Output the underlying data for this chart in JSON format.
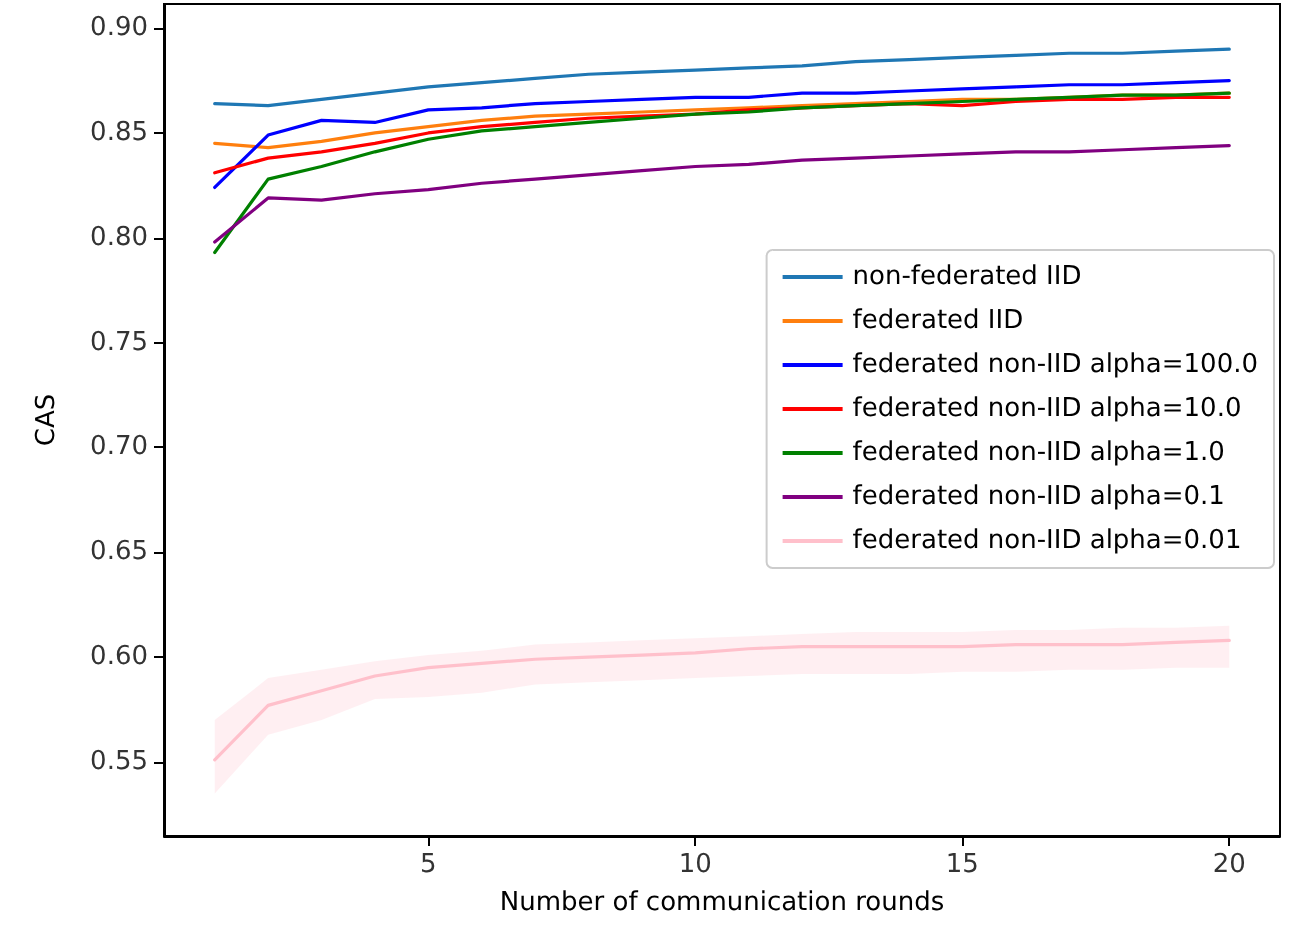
{
  "chart_data": {
    "type": "line",
    "xlabel": "Number of communication rounds",
    "ylabel": "CAS",
    "x": [
      1,
      2,
      3,
      4,
      5,
      6,
      7,
      8,
      9,
      10,
      11,
      12,
      13,
      14,
      15,
      16,
      17,
      18,
      19,
      20
    ],
    "xlim": [
      0.05,
      20.95
    ],
    "xticks": [
      5,
      10,
      15,
      20
    ],
    "ylim": [
      0.5147,
      0.9115
    ],
    "yticks": [
      {
        "value": 0.55,
        "label": "0.55"
      },
      {
        "value": 0.6,
        "label": "0.60"
      },
      {
        "value": 0.65,
        "label": "0.65"
      },
      {
        "value": 0.7,
        "label": "0.70"
      },
      {
        "value": 0.75,
        "label": "0.75"
      },
      {
        "value": 0.8,
        "label": "0.80"
      },
      {
        "value": 0.85,
        "label": "0.85"
      },
      {
        "value": 0.9,
        "label": "0.90"
      }
    ],
    "grid": false,
    "legend": "right",
    "marker": "none",
    "line_style": "solid",
    "series": [
      {
        "name": "non-federated IID",
        "color": "#1f77b4",
        "values": [
          0.864,
          0.863,
          0.866,
          0.869,
          0.872,
          0.874,
          0.876,
          0.878,
          0.879,
          0.88,
          0.881,
          0.882,
          0.884,
          0.885,
          0.886,
          0.887,
          0.888,
          0.888,
          0.889,
          0.89
        ]
      },
      {
        "name": "federated IID",
        "color": "#ff7f0e",
        "values": [
          0.845,
          0.843,
          0.846,
          0.85,
          0.853,
          0.856,
          0.858,
          0.859,
          0.86,
          0.861,
          0.862,
          0.863,
          0.864,
          0.865,
          0.866,
          0.866,
          0.867,
          0.868,
          0.868,
          0.869
        ]
      },
      {
        "name": "federated non-IID alpha=100.0",
        "color": "#0000ff",
        "values": [
          0.824,
          0.849,
          0.856,
          0.855,
          0.861,
          0.862,
          0.864,
          0.865,
          0.866,
          0.867,
          0.867,
          0.869,
          0.869,
          0.87,
          0.871,
          0.872,
          0.873,
          0.873,
          0.874,
          0.875
        ]
      },
      {
        "name": "federated non-IID alpha=10.0",
        "color": "#ff0000",
        "values": [
          0.831,
          0.838,
          0.841,
          0.845,
          0.85,
          0.853,
          0.855,
          0.857,
          0.858,
          0.859,
          0.861,
          0.862,
          0.863,
          0.864,
          0.863,
          0.865,
          0.866,
          0.866,
          0.867,
          0.867
        ]
      },
      {
        "name": "federated non-IID alpha=1.0",
        "color": "#008000",
        "values": [
          0.793,
          0.828,
          0.834,
          0.841,
          0.847,
          0.851,
          0.853,
          0.855,
          0.857,
          0.859,
          0.86,
          0.862,
          0.863,
          0.864,
          0.865,
          0.866,
          0.867,
          0.868,
          0.868,
          0.869
        ]
      },
      {
        "name": "federated non-IID alpha=0.1",
        "color": "#800080",
        "values": [
          0.798,
          0.819,
          0.818,
          0.821,
          0.823,
          0.826,
          0.828,
          0.83,
          0.832,
          0.834,
          0.835,
          0.837,
          0.838,
          0.839,
          0.84,
          0.841,
          0.841,
          0.842,
          0.843,
          0.844
        ]
      },
      {
        "name": "federated non-IID alpha=0.01",
        "color": "#ffc0cb",
        "values": [
          0.551,
          0.577,
          0.584,
          0.591,
          0.595,
          0.597,
          0.599,
          0.6,
          0.601,
          0.602,
          0.604,
          0.605,
          0.605,
          0.605,
          0.605,
          0.606,
          0.606,
          0.606,
          0.607,
          0.608
        ],
        "lower": [
          0.535,
          0.563,
          0.57,
          0.58,
          0.581,
          0.583,
          0.587,
          0.588,
          0.589,
          0.59,
          0.591,
          0.592,
          0.592,
          0.592,
          0.593,
          0.593,
          0.594,
          0.594,
          0.595,
          0.595
        ],
        "upper": [
          0.57,
          0.59,
          0.594,
          0.598,
          0.601,
          0.603,
          0.606,
          0.607,
          0.608,
          0.609,
          0.61,
          0.611,
          0.612,
          0.612,
          0.612,
          0.613,
          0.613,
          0.614,
          0.614,
          0.615
        ]
      }
    ]
  }
}
